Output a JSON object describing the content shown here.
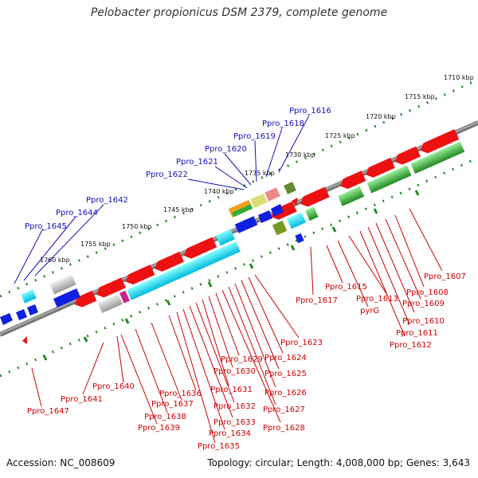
{
  "title": "Pelobacter propionicus DSM 2379, complete genome",
  "accession": "Accession: NC_008609",
  "summary": "Topology: circular; Length: 4,008,000 bp; Genes: 3,643",
  "ruler_ticks": [
    "1710 kbp",
    "1715 kbp",
    "1720 kbp",
    "1725 kbp",
    "1730 kbp",
    "1735 kbp",
    "1740 kbp",
    "1745 kbp",
    "1750 kbp",
    "1755 kbp",
    "1760 kbp"
  ],
  "blue_labels": [
    "Ppro_1645",
    "Ppro_1644",
    "Ppro_1642",
    "Ppro_1622",
    "Ppro_1621",
    "Ppro_1620",
    "Ppro_1619",
    "Ppro_1618",
    "Ppro_1616"
  ],
  "red_labels": [
    "Ppro_1607",
    "Ppro_1608",
    "Ppro_1609",
    "Ppro_1610",
    "Ppro_1611",
    "Ppro_1612",
    "Ppro_1613",
    "pyrG",
    "Ppro_1615",
    "Ppro_1617",
    "Ppro_1623",
    "Ppro_1624",
    "Ppro_1625",
    "Ppro_1626",
    "Ppro_1627",
    "Ppro_1628",
    "Ppro_1629",
    "Ppro_1630",
    "Ppro_1631",
    "Ppro_1632",
    "Ppro_1633",
    "Ppro_1634",
    "Ppro_1635",
    "Ppro_1636",
    "Ppro_1637",
    "Ppro_1638",
    "Ppro_1639",
    "Ppro_1640",
    "Ppro_1641",
    "Ppro_1647"
  ],
  "colors": {
    "reverse_strand": "#ee1111",
    "forward_strand": "#1020e0",
    "backbone": "#777777",
    "ruler": "#228822",
    "cyan": "#22e4ee",
    "green": "#33aa33",
    "grey": "#aaaaaa"
  }
}
